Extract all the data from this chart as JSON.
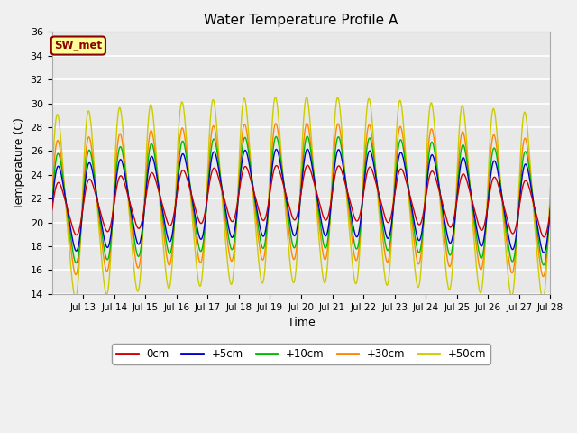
{
  "title": "Water Temperature Profile A",
  "xlabel": "Time",
  "ylabel": "Temperature (C)",
  "ylim": [
    14,
    36
  ],
  "yticks": [
    14,
    16,
    18,
    20,
    22,
    24,
    26,
    28,
    30,
    32,
    34,
    36
  ],
  "x_tick_labels": [
    "Jul 13",
    "Jul 14",
    "Jul 15",
    "Jul 16",
    "Jul 17",
    "Jul 18",
    "Jul 19",
    "Jul 20",
    "Jul 21",
    "Jul 22",
    "Jul 23",
    "Jul 24",
    "Jul 25",
    "Jul 26",
    "Jul 27",
    "Jul 28"
  ],
  "colors": {
    "0cm": "#cc0000",
    "+5cm": "#0000cc",
    "+10cm": "#00bb00",
    "+30cm": "#ff8800",
    "+50cm": "#cccc00"
  },
  "legend_label": "SW_met",
  "plot_bg_color": "#e8e8e8",
  "fig_bg_color": "#f0f0f0",
  "grid_color": "#ffffff",
  "base_temp": 21.0,
  "amp_0cm": 2.2,
  "amp_5cm": 3.5,
  "amp_10cm": 4.5,
  "amp_30cm": 5.5,
  "amp_50cm": 7.5,
  "trend_amp": 1.5,
  "period_days": 1.0,
  "phase_shift_per_depth": 0.08,
  "n_points": 8000,
  "total_days": 16
}
